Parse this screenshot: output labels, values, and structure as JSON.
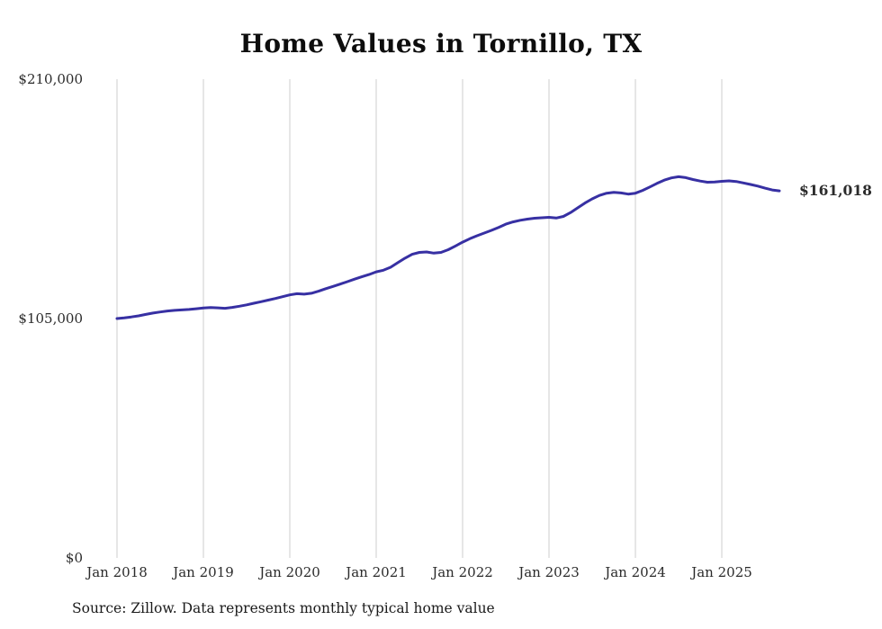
{
  "chart_data": {
    "type": "line",
    "title": "Home Values in Tornillo, TX",
    "source_note": "Source: Zillow. Data represents monthly typical home value",
    "series_name": "Monthly typical home value",
    "unit": "USD",
    "start_month": "2018-01",
    "end_month": "2025-09",
    "latest_value": 161018,
    "end_label": "$161,018",
    "line_color": "#3730a3",
    "grid_color": "#cccccc",
    "ylim": [
      0,
      210000
    ],
    "y_ticks": [
      {
        "label": "$0",
        "value": 0
      },
      {
        "label": "$105,000",
        "value": 105000
      },
      {
        "label": "$210,000",
        "value": 210000
      }
    ],
    "x_tick_labels": [
      "Jan 2018",
      "Jan 2019",
      "Jan 2020",
      "Jan 2021",
      "Jan 2022",
      "Jan 2023",
      "Jan 2024",
      "Jan 2025"
    ],
    "x_tick_month_indices": [
      0,
      12,
      24,
      36,
      48,
      60,
      72,
      84
    ],
    "grid": "vertical-only",
    "legend": "none",
    "values": [
      105000,
      105300,
      105700,
      106200,
      106800,
      107400,
      107900,
      108300,
      108600,
      108800,
      109000,
      109300,
      109600,
      109800,
      109700,
      109500,
      109900,
      110400,
      111000,
      111700,
      112400,
      113100,
      113800,
      114600,
      115400,
      115900,
      115700,
      116100,
      117000,
      118100,
      119100,
      120100,
      121200,
      122300,
      123300,
      124300,
      125500,
      126200,
      127500,
      129500,
      131500,
      133200,
      134000,
      134200,
      133700,
      134000,
      135200,
      136800,
      138500,
      140000,
      141300,
      142500,
      143700,
      145000,
      146400,
      147400,
      148100,
      148600,
      149000,
      149200,
      149400,
      149100,
      149800,
      151500,
      153600,
      155700,
      157500,
      159000,
      160000,
      160400,
      160100,
      159600,
      160000,
      161200,
      162700,
      164300,
      165700,
      166700,
      167200,
      166800,
      166000,
      165300,
      164800,
      164900,
      165200,
      165400,
      165100,
      164500,
      163800,
      163100,
      162200,
      161400,
      161018
    ]
  }
}
